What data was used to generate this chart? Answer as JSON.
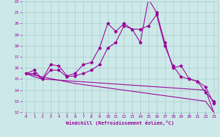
{
  "xlabel": "Windchill (Refroidissement éolien,°C)",
  "x": [
    0,
    1,
    2,
    3,
    4,
    5,
    6,
    7,
    8,
    9,
    10,
    11,
    12,
    13,
    14,
    15,
    16,
    17,
    18,
    19,
    20,
    21,
    22,
    23
  ],
  "line1": [
    15.5,
    15.8,
    15.0,
    16.3,
    16.2,
    15.3,
    15.5,
    16.3,
    16.5,
    17.8,
    20.0,
    19.3,
    20.0,
    19.5,
    18.3,
    22.2,
    21.0,
    18.3,
    16.0,
    16.2,
    15.0,
    14.8,
    13.8,
    13.0
  ],
  "line2": [
    15.5,
    15.5,
    15.0,
    15.8,
    15.8,
    15.2,
    15.3,
    15.5,
    15.8,
    16.3,
    17.8,
    18.3,
    19.8,
    19.5,
    19.5,
    19.8,
    20.8,
    18.0,
    16.2,
    15.2,
    15.0,
    14.8,
    14.3,
    12.8
  ],
  "line3": [
    15.5,
    15.35,
    15.2,
    15.05,
    14.9,
    14.75,
    14.6,
    14.5,
    14.4,
    14.3,
    14.2,
    14.1,
    14.0,
    13.9,
    13.8,
    13.7,
    13.6,
    13.5,
    13.4,
    13.3,
    13.2,
    13.1,
    13.0,
    12.0
  ],
  "line4": [
    15.5,
    15.2,
    15.0,
    14.95,
    14.9,
    14.85,
    14.8,
    14.75,
    14.7,
    14.65,
    14.6,
    14.55,
    14.5,
    14.45,
    14.4,
    14.35,
    14.3,
    14.25,
    14.2,
    14.15,
    14.1,
    14.05,
    14.0,
    12.0
  ],
  "color": "#990099",
  "bg_color": "#cce8e8",
  "grid_color": "#aacccc",
  "ylim": [
    12,
    22
  ],
  "yticks": [
    12,
    13,
    14,
    15,
    16,
    17,
    18,
    19,
    20,
    21,
    22
  ],
  "xticks": [
    0,
    1,
    2,
    3,
    4,
    5,
    6,
    7,
    8,
    9,
    10,
    11,
    12,
    13,
    14,
    15,
    16,
    17,
    18,
    19,
    20,
    21,
    22,
    23
  ],
  "marker": "*",
  "markersize": 3,
  "linewidth": 0.8
}
